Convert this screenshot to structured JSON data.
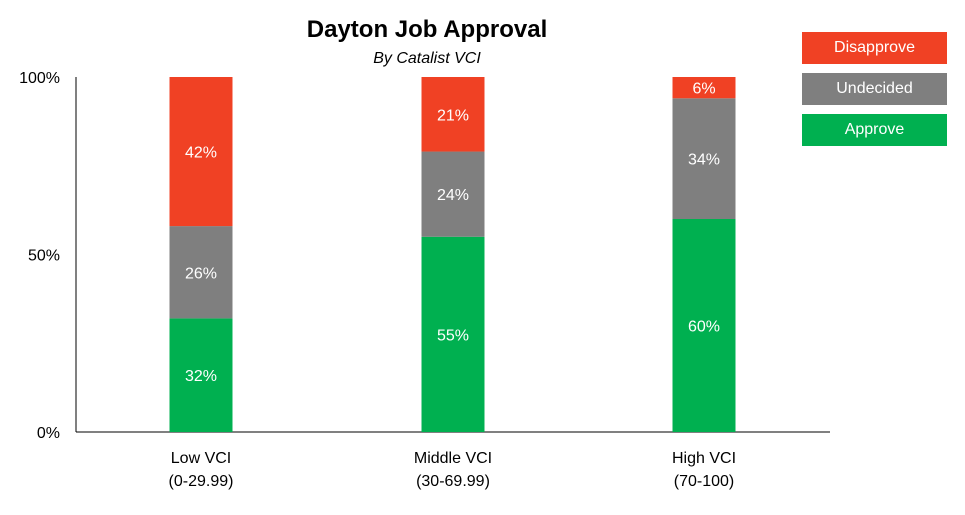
{
  "chart_data": {
    "type": "bar",
    "stacked": true,
    "title": "Dayton Job Approval",
    "subtitle": "By Catalist VCI",
    "categories": [
      [
        "Low VCI",
        "(0-29.99)"
      ],
      [
        "Middle VCI",
        "(30-69.99)"
      ],
      [
        "High VCI",
        "(70-100)"
      ]
    ],
    "series": [
      {
        "name": "Approve",
        "values": [
          32,
          55,
          60
        ],
        "color": "#00b050"
      },
      {
        "name": "Undecided",
        "values": [
          26,
          24,
          34
        ],
        "color": "#7f7f7f"
      },
      {
        "name": "Disapprove",
        "values": [
          42,
          21,
          6
        ],
        "color": "#f04124"
      }
    ],
    "value_suffix": "%",
    "ylim": [
      0,
      100
    ],
    "yticks": [
      "0%",
      "50%",
      "100%"
    ],
    "grid": false,
    "legend_position": "top-right",
    "legend_order": [
      "Disapprove",
      "Undecided",
      "Approve"
    ]
  }
}
